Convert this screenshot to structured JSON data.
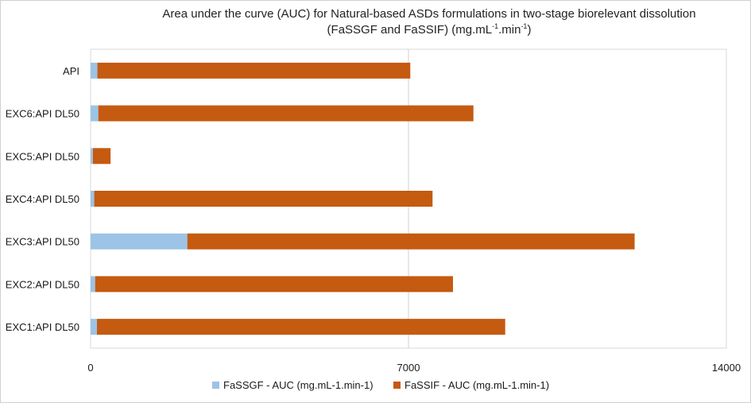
{
  "chart_data": {
    "type": "bar",
    "orientation": "horizontal",
    "stacked": true,
    "title_line1": "Area under the curve (AUC) for Natural-based ASDs formulations in two-stage biorelevant dissolution",
    "title_line2_prefix": "(FaSSGF and FaSSIF) (mg.mL",
    "title_sup1": "-1",
    "title_mid": ".min",
    "title_sup2": "-1",
    "title_suffix": ")",
    "categories": [
      "API",
      "EXC6:API DL50",
      "EXC5:API DL50",
      "EXC4:API DL50",
      "EXC3:API DL50",
      "EXC2:API DL50",
      "EXC1:API DL50"
    ],
    "series": [
      {
        "name": "FaSSGF - AUC (mg.mL-1.min-1)",
        "color": "#9DC3E6",
        "values": [
          150,
          170,
          50,
          80,
          2130,
          100,
          140
        ]
      },
      {
        "name": "FaSSIF - AUC (mg.mL-1.min-1)",
        "color": "#C55A11",
        "values": [
          6890,
          8260,
          390,
          7450,
          9850,
          7880,
          8990
        ]
      }
    ],
    "xlim": [
      0,
      14000
    ],
    "xticks": [
      "0",
      "7000",
      "14000"
    ],
    "xgrid": true,
    "legend_position": "bottom"
  }
}
